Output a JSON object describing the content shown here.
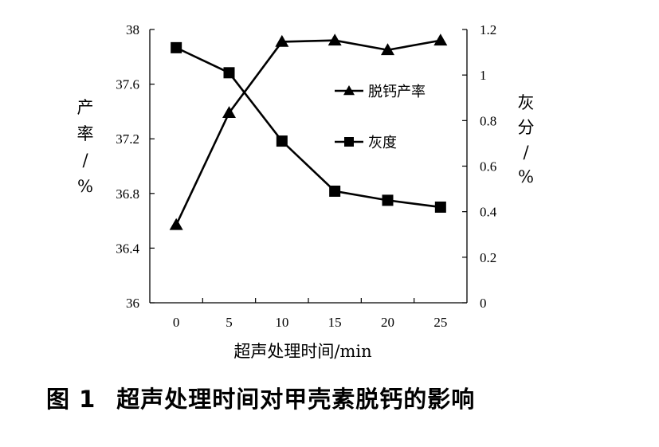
{
  "chart_data": {
    "type": "line",
    "x": [
      0,
      5,
      10,
      15,
      20,
      25
    ],
    "x_ticks": [
      "0",
      "5",
      "10",
      "15",
      "20",
      "25"
    ],
    "xlabel": "超声处理时间/min",
    "xlim": [
      -2.5,
      27.5
    ],
    "ylabel_left": [
      "产",
      "率",
      "/",
      "%"
    ],
    "ylim_left": [
      36,
      38
    ],
    "yticks_left": [
      "36",
      "36.4",
      "36.8",
      "37.2",
      "37.6",
      "38"
    ],
    "ylabel_right": [
      "灰",
      "分",
      "/",
      "%"
    ],
    "ylim_right": [
      0,
      1.2
    ],
    "yticks_right": [
      "0",
      "0.2",
      "0.4",
      "0.6",
      "0.8",
      "1",
      "1.2"
    ],
    "series": [
      {
        "name": "脱钙产率",
        "axis": "left",
        "marker": "triangle",
        "values": [
          36.57,
          37.39,
          37.91,
          37.92,
          37.85,
          37.92
        ]
      },
      {
        "name": "灰度",
        "axis": "right",
        "marker": "square",
        "values": [
          1.12,
          1.01,
          0.71,
          0.49,
          0.45,
          0.42
        ]
      }
    ],
    "grid": false,
    "legend_position": "inside-top-right"
  },
  "caption": {
    "number": "图 1",
    "text": "超声处理时间对甲壳素脱钙的影响"
  },
  "colors": {
    "line": "#000000",
    "background": "#ffffff"
  }
}
